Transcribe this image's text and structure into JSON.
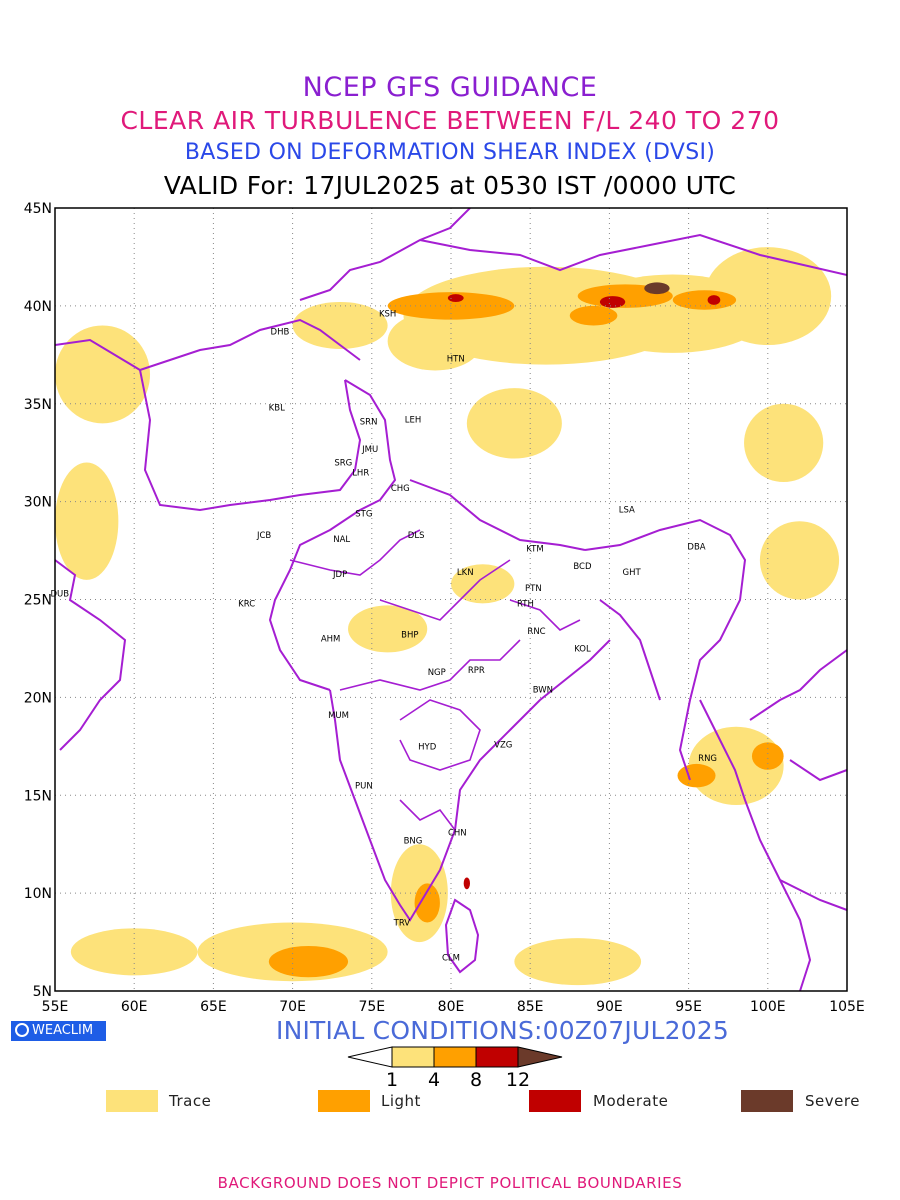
{
  "header": {
    "title": "NCEP GFS GUIDANCE",
    "subtitle": "CLEAR AIR TURBULENCE BETWEEN F/L 240 TO 270",
    "index_line": "BASED ON DEFORMATION SHEAR INDEX (DVSI)",
    "valid_line": "VALID For: 17JUL2025 at 0530 IST /0000 UTC"
  },
  "logo": {
    "text": "WEACLIM",
    "icon": "circle-logo-icon",
    "color": "#1e5de6"
  },
  "init_conditions": "INITIAL CONDITIONS:00Z07JUL2025",
  "footer_note": "BACKGROUND DOES NOT DEPICT POLITICAL BOUNDARIES",
  "colors": {
    "title": "#8a1fd0",
    "subtitle": "#e0197a",
    "index_line": "#2a48e8",
    "boundary": "#a51ed2",
    "trace": "#fde27a",
    "light": "#ffa000",
    "moderate": "#c00000",
    "severe": "#6b3a2a",
    "init": "#4a6ad8",
    "footer": "#e0197a"
  },
  "axes": {
    "lon_range": [
      55,
      105
    ],
    "lat_range": [
      5,
      45
    ],
    "lon_ticks": [
      "55E",
      "60E",
      "65E",
      "70E",
      "75E",
      "80E",
      "85E",
      "90E",
      "95E",
      "100E",
      "105E"
    ],
    "lat_ticks": [
      "45N",
      "40N",
      "35N",
      "30N",
      "25N",
      "20N",
      "15N",
      "10N",
      "5N"
    ],
    "grid": "dotted"
  },
  "colorbar": {
    "ticks": [
      "1",
      "4",
      "8",
      "12"
    ]
  },
  "legend": [
    {
      "label": "Trace",
      "color": "#fde27a"
    },
    {
      "label": "Light",
      "color": "#ffa000"
    },
    {
      "label": "Moderate",
      "color": "#c00000"
    },
    {
      "label": "Severe",
      "color": "#6b3a2a"
    }
  ],
  "stations": [
    {
      "code": "DHB",
      "lon": 69.2,
      "lat": 38.7
    },
    {
      "code": "KSH",
      "lon": 76.0,
      "lat": 39.6
    },
    {
      "code": "HTN",
      "lon": 80.3,
      "lat": 37.3
    },
    {
      "code": "KBL",
      "lon": 69.0,
      "lat": 34.8
    },
    {
      "code": "SRN",
      "lon": 74.8,
      "lat": 34.1
    },
    {
      "code": "LEH",
      "lon": 77.6,
      "lat": 34.2
    },
    {
      "code": "JMU",
      "lon": 74.9,
      "lat": 32.7
    },
    {
      "code": "SRG",
      "lon": 73.2,
      "lat": 32.0
    },
    {
      "code": "LHR",
      "lon": 74.3,
      "lat": 31.5
    },
    {
      "code": "CHG",
      "lon": 76.8,
      "lat": 30.7
    },
    {
      "code": "LSA",
      "lon": 91.1,
      "lat": 29.6
    },
    {
      "code": "STG",
      "lon": 74.5,
      "lat": 29.4
    },
    {
      "code": "JCB",
      "lon": 68.2,
      "lat": 28.3
    },
    {
      "code": "NAL",
      "lon": 73.1,
      "lat": 28.1
    },
    {
      "code": "DLS",
      "lon": 77.8,
      "lat": 28.3
    },
    {
      "code": "DBA",
      "lon": 95.5,
      "lat": 27.7
    },
    {
      "code": "KTM",
      "lon": 85.3,
      "lat": 27.6
    },
    {
      "code": "BCD",
      "lon": 88.3,
      "lat": 26.7
    },
    {
      "code": "JDP",
      "lon": 73.0,
      "lat": 26.3
    },
    {
      "code": "LKN",
      "lon": 80.9,
      "lat": 26.4
    },
    {
      "code": "GHT",
      "lon": 91.4,
      "lat": 26.4
    },
    {
      "code": "PTN",
      "lon": 85.2,
      "lat": 25.6
    },
    {
      "code": "DUB",
      "lon": 55.3,
      "lat": 25.3
    },
    {
      "code": "KRC",
      "lon": 67.1,
      "lat": 24.8
    },
    {
      "code": "RTH",
      "lon": 84.7,
      "lat": 24.8
    },
    {
      "code": "BHP",
      "lon": 77.4,
      "lat": 23.2
    },
    {
      "code": "AHM",
      "lon": 72.4,
      "lat": 23.0
    },
    {
      "code": "RNC",
      "lon": 85.4,
      "lat": 23.4
    },
    {
      "code": "KOL",
      "lon": 88.3,
      "lat": 22.5
    },
    {
      "code": "NGP",
      "lon": 79.1,
      "lat": 21.3
    },
    {
      "code": "RPR",
      "lon": 81.6,
      "lat": 21.4
    },
    {
      "code": "BWN",
      "lon": 85.8,
      "lat": 20.4
    },
    {
      "code": "MUM",
      "lon": 72.9,
      "lat": 19.1
    },
    {
      "code": "HYD",
      "lon": 78.5,
      "lat": 17.5
    },
    {
      "code": "VZG",
      "lon": 83.3,
      "lat": 17.6
    },
    {
      "code": "RNG",
      "lon": 96.2,
      "lat": 16.9
    },
    {
      "code": "PUN",
      "lon": 74.5,
      "lat": 15.5
    },
    {
      "code": "CHN",
      "lon": 80.4,
      "lat": 13.1
    },
    {
      "code": "BNG",
      "lon": 77.6,
      "lat": 12.7
    },
    {
      "code": "TRV",
      "lon": 76.9,
      "lat": 8.5
    },
    {
      "code": "CLM",
      "lon": 80.0,
      "lat": 6.7
    }
  ],
  "turbulence_areas": [
    {
      "level": "trace",
      "cx": 86,
      "cy": 39.5,
      "rx": 9,
      "ry": 2.5
    },
    {
      "level": "trace",
      "cx": 94,
      "cy": 39.6,
      "rx": 6,
      "ry": 2.0
    },
    {
      "level": "trace",
      "cx": 100,
      "cy": 40.5,
      "rx": 4,
      "ry": 2.5
    },
    {
      "level": "trace",
      "cx": 79,
      "cy": 38.2,
      "rx": 3,
      "ry": 1.5
    },
    {
      "level": "trace",
      "cx": 73,
      "cy": 39.0,
      "rx": 3,
      "ry": 1.2
    },
    {
      "level": "trace",
      "cx": 58,
      "cy": 36.5,
      "rx": 3,
      "ry": 2.5
    },
    {
      "level": "trace",
      "cx": 57,
      "cy": 29.0,
      "rx": 2,
      "ry": 3.0
    },
    {
      "level": "trace",
      "cx": 70,
      "cy": 7.0,
      "rx": 6,
      "ry": 1.5
    },
    {
      "level": "trace",
      "cx": 60,
      "cy": 7.0,
      "rx": 4,
      "ry": 1.2
    },
    {
      "level": "trace",
      "cx": 88,
      "cy": 6.5,
      "rx": 4,
      "ry": 1.2
    },
    {
      "level": "trace",
      "cx": 98,
      "cy": 16.5,
      "rx": 3,
      "ry": 2.0
    },
    {
      "level": "trace",
      "cx": 78,
      "cy": 10.0,
      "rx": 1.8,
      "ry": 2.5
    },
    {
      "level": "trace",
      "cx": 76,
      "cy": 23.5,
      "rx": 2.5,
      "ry": 1.2
    },
    {
      "level": "trace",
      "cx": 82,
      "cy": 25.8,
      "rx": 2,
      "ry": 1.0
    },
    {
      "level": "trace",
      "cx": 84,
      "cy": 34.0,
      "rx": 3,
      "ry": 1.8
    },
    {
      "level": "trace",
      "cx": 101,
      "cy": 33.0,
      "rx": 2.5,
      "ry": 2.0
    },
    {
      "level": "trace",
      "cx": 102,
      "cy": 27.0,
      "rx": 2.5,
      "ry": 2.0
    },
    {
      "level": "light",
      "cx": 80,
      "cy": 40.0,
      "rx": 4,
      "ry": 0.7
    },
    {
      "level": "light",
      "cx": 91,
      "cy": 40.5,
      "rx": 3,
      "ry": 0.6
    },
    {
      "level": "light",
      "cx": 96,
      "cy": 40.3,
      "rx": 2,
      "ry": 0.5
    },
    {
      "level": "light",
      "cx": 89,
      "cy": 39.5,
      "rx": 1.5,
      "ry": 0.5
    },
    {
      "level": "light",
      "cx": 71,
      "cy": 6.5,
      "rx": 2.5,
      "ry": 0.8
    },
    {
      "level": "light",
      "cx": 95.5,
      "cy": 16.0,
      "rx": 1.2,
      "ry": 0.6
    },
    {
      "level": "light",
      "cx": 100,
      "cy": 17.0,
      "rx": 1,
      "ry": 0.7
    },
    {
      "level": "light",
      "cx": 78.5,
      "cy": 9.5,
      "rx": 0.8,
      "ry": 1.0
    },
    {
      "level": "moderate",
      "cx": 90.2,
      "cy": 40.2,
      "rx": 0.8,
      "ry": 0.3
    },
    {
      "level": "moderate",
      "cx": 80.3,
      "cy": 40.4,
      "rx": 0.5,
      "ry": 0.2
    },
    {
      "level": "moderate",
      "cx": 96.6,
      "cy": 40.3,
      "rx": 0.4,
      "ry": 0.25
    },
    {
      "level": "moderate",
      "cx": 81.0,
      "cy": 10.5,
      "rx": 0.2,
      "ry": 0.3
    },
    {
      "level": "severe",
      "cx": 93.0,
      "cy": 40.9,
      "rx": 0.8,
      "ry": 0.3
    }
  ]
}
